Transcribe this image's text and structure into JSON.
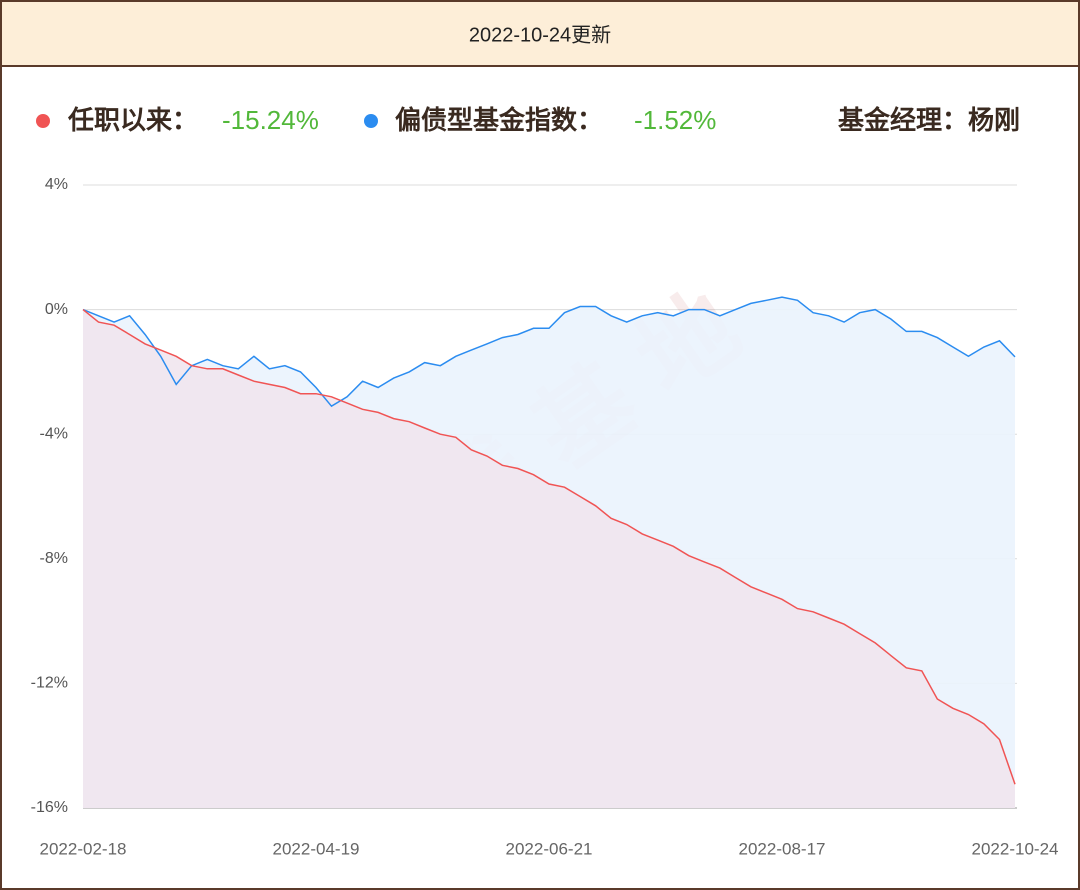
{
  "header": {
    "title": "2022-10-24更新"
  },
  "chart_data": {
    "type": "line",
    "manager": "基金经理：杨刚",
    "watermark": "搞钱基地",
    "categories": [
      "2022-02-18",
      null,
      null,
      null,
      null,
      null,
      null,
      null,
      null,
      null,
      null,
      null,
      null,
      null,
      null,
      "2022-04-19",
      null,
      null,
      null,
      null,
      null,
      null,
      null,
      null,
      null,
      null,
      null,
      null,
      null,
      null,
      "2022-06-21",
      null,
      null,
      null,
      null,
      null,
      null,
      null,
      null,
      null,
      null,
      null,
      null,
      null,
      null,
      "2022-08-17",
      null,
      null,
      null,
      null,
      null,
      null,
      null,
      null,
      null,
      null,
      null,
      null,
      null,
      null,
      "2022-10-24"
    ],
    "series": [
      {
        "name": "任职以来：",
        "color": "#f05454",
        "fill": "#f1e6ee",
        "legend_value": "-15.24%",
        "values": [
          0,
          -0.4,
          -0.5,
          -0.8,
          -1.1,
          -1.3,
          -1.5,
          -1.8,
          -1.9,
          -1.9,
          -2.1,
          -2.3,
          -2.4,
          -2.5,
          -2.7,
          -2.7,
          -2.8,
          -3.0,
          -3.2,
          -3.3,
          -3.5,
          -3.6,
          -3.8,
          -4.0,
          -4.1,
          -4.5,
          -4.7,
          -5.0,
          -5.1,
          -5.3,
          -5.6,
          -5.7,
          -6.0,
          -6.3,
          -6.7,
          -6.9,
          -7.2,
          -7.4,
          -7.6,
          -7.9,
          -8.1,
          -8.3,
          -8.6,
          -8.9,
          -9.1,
          -9.3,
          -9.6,
          -9.7,
          -9.9,
          -10.1,
          -10.4,
          -10.7,
          -11.1,
          -11.5,
          -11.6,
          -12.5,
          -12.8,
          -13.0,
          -13.3,
          -13.8,
          -15.24
        ]
      },
      {
        "name": "偏债型基金指数：",
        "color": "#2b8cf0",
        "fill": "#eaf3fd",
        "legend_value": "-1.52%",
        "values": [
          0,
          -0.2,
          -0.4,
          -0.2,
          -0.8,
          -1.5,
          -2.4,
          -1.8,
          -1.6,
          -1.8,
          -1.9,
          -1.5,
          -1.9,
          -1.8,
          -2.0,
          -2.5,
          -3.1,
          -2.8,
          -2.3,
          -2.5,
          -2.2,
          -2.0,
          -1.7,
          -1.8,
          -1.5,
          -1.3,
          -1.1,
          -0.9,
          -0.8,
          -0.6,
          -0.6,
          -0.1,
          0.1,
          0.1,
          -0.2,
          -0.4,
          -0.2,
          -0.1,
          -0.2,
          0.0,
          0.0,
          -0.2,
          0.0,
          0.2,
          0.3,
          0.4,
          0.3,
          -0.1,
          -0.2,
          -0.4,
          -0.1,
          0.0,
          -0.3,
          -0.7,
          -0.7,
          -0.9,
          -1.2,
          -1.5,
          -1.2,
          -1.0,
          -1.52
        ]
      }
    ],
    "ylim": [
      -16,
      4
    ],
    "yticks": [
      {
        "value": 4,
        "label": "4%"
      },
      {
        "value": 0,
        "label": "0%"
      },
      {
        "value": -4,
        "label": "-4%"
      },
      {
        "value": -8,
        "label": "-8%"
      },
      {
        "value": -12,
        "label": "-12%"
      },
      {
        "value": -16,
        "label": "-16%"
      }
    ],
    "grid": true
  }
}
